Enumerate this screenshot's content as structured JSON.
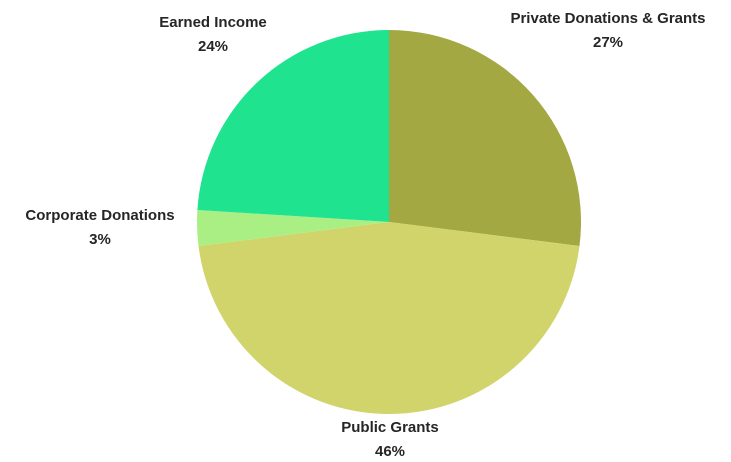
{
  "chart_data": {
    "type": "pie",
    "title": "",
    "start": "12 o'clock",
    "direction": "clockwise",
    "slices": [
      {
        "name": "Private Donations & Grants",
        "value": 27,
        "label": "27%",
        "color": "#a3a843"
      },
      {
        "name": "Public Grants",
        "value": 46,
        "label": "46%",
        "color": "#d1d46b"
      },
      {
        "name": "Corporate Donations",
        "value": 3,
        "label": "3%",
        "color": "#a9ef83"
      },
      {
        "name": "Earned Income",
        "value": 24,
        "label": "24%",
        "color": "#20e38f"
      }
    ],
    "legend": "none",
    "data_labels": "outside"
  }
}
